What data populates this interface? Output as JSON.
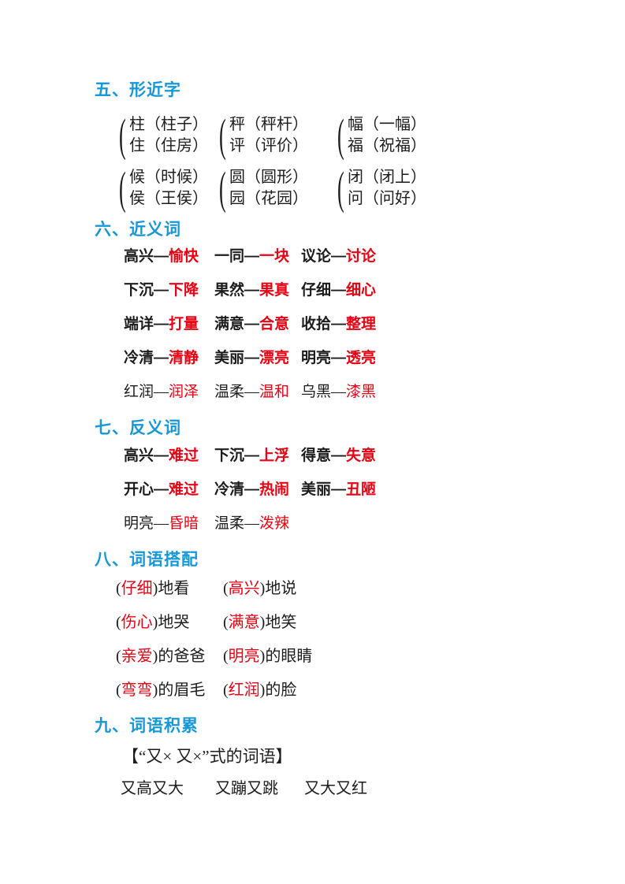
{
  "colors": {
    "heading_blue": "#1697d6",
    "accent_red": "#e60012",
    "text": "#1c1c1c",
    "background": "#ffffff"
  },
  "dash": "—",
  "sec5": {
    "title": "五、形近字",
    "brace": "(",
    "groups": [
      {
        "pairs": [
          {
            "a": "柱（柱子）",
            "b": "住（住房）"
          },
          {
            "a": "秤（秤杆）",
            "b": "评（评价）"
          },
          {
            "a": "幅（一幅）",
            "b": "福（祝福）"
          }
        ]
      },
      {
        "pairs": [
          {
            "a": "候（时候）",
            "b": "侯（王侯）"
          },
          {
            "a": "圆（圆形）",
            "b": "园（花园）"
          },
          {
            "a": "闭（闭上）",
            "b": "问（问好）"
          }
        ]
      }
    ]
  },
  "sec6": {
    "title": "六、近义词",
    "rows": [
      {
        "style": "bold",
        "items": [
          {
            "w": "高兴",
            "r": "愉快"
          },
          {
            "w": "一同",
            "r": "一块"
          },
          {
            "w": "议论",
            "r": "讨论"
          }
        ]
      },
      {
        "style": "bold",
        "items": [
          {
            "w": "下沉",
            "r": "下降"
          },
          {
            "w": "果然",
            "r": "果真"
          },
          {
            "w": "仔细",
            "r": "细心"
          }
        ]
      },
      {
        "style": "bold",
        "items": [
          {
            "w": "端详",
            "r": "打量"
          },
          {
            "w": "满意",
            "r": "合意"
          },
          {
            "w": "收拾",
            "r": "整理"
          }
        ]
      },
      {
        "style": "bold",
        "items": [
          {
            "w": "冷清",
            "r": "清静"
          },
          {
            "w": "美丽",
            "r": "漂亮"
          },
          {
            "w": "明亮",
            "r": "透亮"
          }
        ]
      },
      {
        "style": "regular",
        "items": [
          {
            "w": "红润",
            "r": "润泽"
          },
          {
            "w": "温柔",
            "r": "温和"
          },
          {
            "w": "乌黑",
            "r": "漆黑"
          }
        ]
      }
    ]
  },
  "sec7": {
    "title": "七、反义词",
    "rows": [
      {
        "style": "bold",
        "items": [
          {
            "w": "高兴",
            "r": "难过"
          },
          {
            "w": "下沉",
            "r": "上浮"
          },
          {
            "w": "得意",
            "r": "失意"
          }
        ]
      },
      {
        "style": "bold",
        "items": [
          {
            "w": "开心",
            "r": "难过"
          },
          {
            "w": "冷清",
            "r": "热闹"
          },
          {
            "w": "美丽",
            "r": "丑陋"
          }
        ]
      },
      {
        "style": "regular",
        "items": [
          {
            "w": "明亮",
            "r": "昏暗"
          },
          {
            "w": "温柔",
            "r": "泼辣"
          }
        ]
      }
    ]
  },
  "sec8": {
    "title": "八、词语搭配",
    "paren_open": "(",
    "paren_close": ")",
    "rows": [
      {
        "items": [
          {
            "red": "仔细",
            "tail": "地看"
          },
          {
            "red": "高兴",
            "tail": "地说"
          }
        ]
      },
      {
        "items": [
          {
            "red": "伤心",
            "tail": "地哭"
          },
          {
            "red": "满意",
            "tail": "地笑"
          }
        ]
      },
      {
        "items": [
          {
            "red": "亲爱",
            "tail": "的爸爸"
          },
          {
            "red": "明亮",
            "tail": "的眼睛"
          }
        ]
      },
      {
        "items": [
          {
            "red": "弯弯",
            "tail": "的眉毛"
          },
          {
            "red": "红润",
            "tail": "的脸"
          }
        ]
      }
    ]
  },
  "sec9": {
    "title": "九、词语积累",
    "subtitle": "【“又× 又×”式的词语】",
    "words": [
      "又高又大",
      "又蹦又跳",
      "又大又红"
    ]
  }
}
